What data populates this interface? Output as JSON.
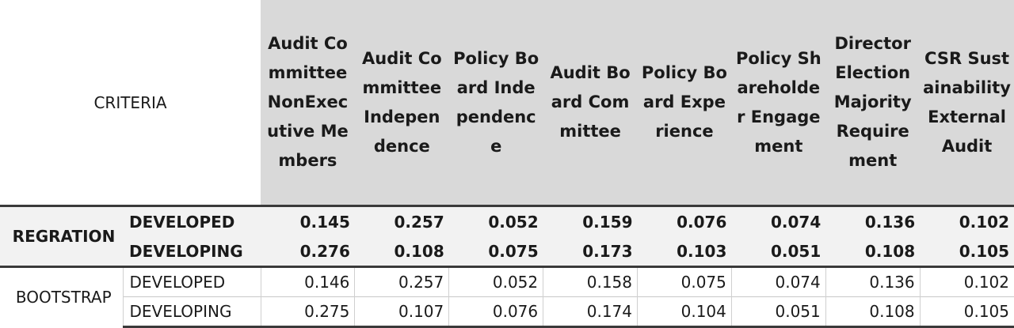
{
  "header": {
    "criteria": "CRITERIA",
    "columns": [
      "Audit Committee NonExecutive Members",
      "Audit Committee Independence",
      "Policy Board Independence",
      "Audit Board Committee",
      "Policy Board Experience",
      "Policy Shareholder Engagement",
      "Director Election Majority Requirement",
      "CSR Sustainability External Audit"
    ]
  },
  "rows": {
    "regration": {
      "label": "REGRATION",
      "developed": {
        "label": "DEVELOPED",
        "values": [
          "0.145",
          "0.257",
          "0.052",
          "0.159",
          "0.076",
          "0.074",
          "0.136",
          "0.102"
        ]
      },
      "developing": {
        "label": "DEVELOPING",
        "values": [
          "0.276",
          "0.108",
          "0.075",
          "0.173",
          "0.103",
          "0.051",
          "0.108",
          "0.105"
        ]
      }
    },
    "bootstrap": {
      "label": "BOOTSTRAP",
      "developed": {
        "label": "DEVELOPED",
        "values": [
          "0.146",
          "0.257",
          "0.052",
          "0.158",
          "0.075",
          "0.074",
          "0.136",
          "0.102"
        ]
      },
      "developing": {
        "label": "DEVELOPING",
        "values": [
          "0.275",
          "0.107",
          "0.076",
          "0.174",
          "0.104",
          "0.051",
          "0.108",
          "0.105"
        ]
      }
    }
  }
}
